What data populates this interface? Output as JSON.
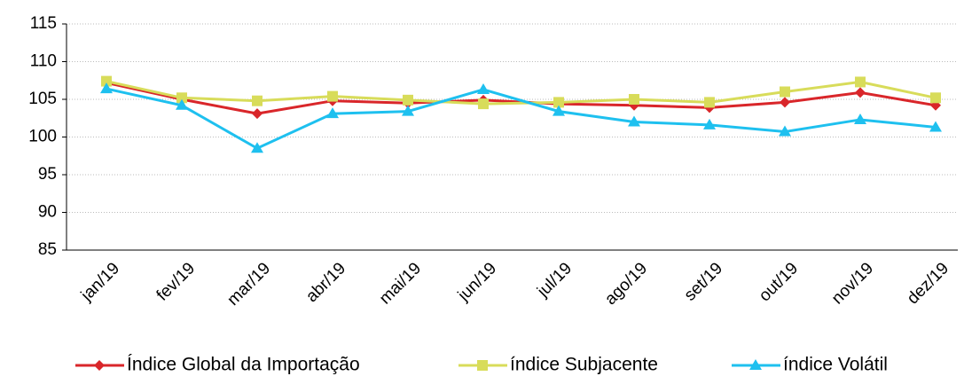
{
  "chart_data": {
    "type": "line",
    "categories": [
      "jan/19",
      "fev/19",
      "mar/19",
      "abr/19",
      "mai/19",
      "jun/19",
      "jul/19",
      "ago/19",
      "set/19",
      "out/19",
      "nov/19",
      "dez/19"
    ],
    "series": [
      {
        "name": "Índice Global da Importação",
        "color": "#d9262a",
        "marker": "diamond",
        "values": [
          107.2,
          105.0,
          103.1,
          104.8,
          104.5,
          104.9,
          104.4,
          104.2,
          103.9,
          104.6,
          105.9,
          104.2
        ]
      },
      {
        "name": "índice Subjacente",
        "color": "#d8dc5a",
        "marker": "square",
        "values": [
          107.4,
          105.2,
          104.8,
          105.4,
          104.9,
          104.4,
          104.6,
          105.0,
          104.6,
          106.0,
          107.3,
          105.2
        ]
      },
      {
        "name": "índice Volátil",
        "color": "#1ec0ef",
        "marker": "triangle",
        "values": [
          106.4,
          104.2,
          98.5,
          103.1,
          103.4,
          106.3,
          103.4,
          102.0,
          101.6,
          100.7,
          102.3,
          101.3
        ]
      }
    ],
    "ylim": [
      85,
      115
    ],
    "yticks": [
      85,
      90,
      95,
      100,
      105,
      110,
      115
    ],
    "grid": true,
    "legend": "bottom"
  }
}
